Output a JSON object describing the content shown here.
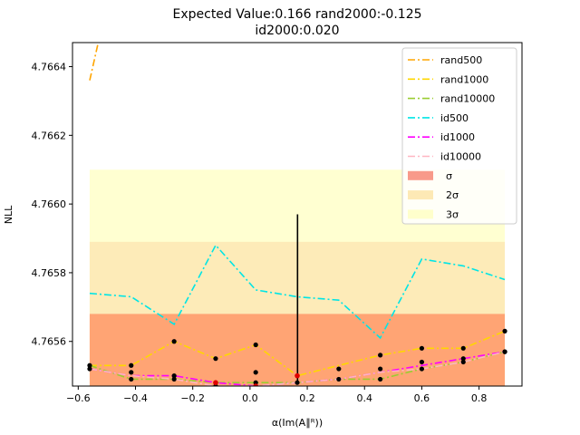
{
  "chart_data": {
    "type": "line",
    "title_line1": "Expected Value:0.166       rand2000:-0.125",
    "title_line2": "id2000:0.020",
    "xlabel": "α(Im(A∥ᴿ))",
    "ylabel": "NLL",
    "xlim": [
      -0.62,
      0.95
    ],
    "ylim": [
      4.76547,
      4.76647
    ],
    "xticks": [
      -0.6,
      -0.4,
      -0.2,
      0.0,
      0.2,
      0.4,
      0.6,
      0.8
    ],
    "xtick_labels": [
      "−0.6",
      "−0.4",
      "−0.2",
      "0.0",
      "0.2",
      "0.4",
      "0.6",
      "0.8"
    ],
    "yticks": [
      4.7656,
      4.7658,
      4.766,
      4.7662,
      4.7664
    ],
    "ytick_labels": [
      "4.7656",
      "4.7658",
      "4.7660",
      "4.7662",
      "4.7664"
    ],
    "x": [
      -0.56,
      -0.415,
      -0.265,
      -0.12,
      0.02,
      0.165,
      0.31,
      0.455,
      0.6,
      0.745,
      0.89
    ],
    "series": [
      {
        "name": "rand500",
        "color": "#ffa500",
        "x": [
          -0.56,
          -0.53
        ],
        "values": [
          4.76636,
          4.76647
        ]
      },
      {
        "name": "rand1000",
        "color": "#ffd700",
        "values": [
          4.76553,
          4.76553,
          4.7656,
          4.76555,
          4.76559,
          4.7655,
          4.76553,
          4.76556,
          4.76558,
          4.76558,
          4.76563
        ]
      },
      {
        "name": "rand10000",
        "color": "#9acd32",
        "values": [
          4.76553,
          4.76549,
          4.76549,
          4.76548,
          4.76548,
          4.76548,
          4.76549,
          4.76549,
          4.76552,
          4.76554,
          4.76557
        ]
      },
      {
        "name": "id500",
        "color": "#00e5e5",
        "values": [
          4.76574,
          4.76573,
          4.76565,
          4.76588,
          4.76575,
          4.76573,
          4.76572,
          4.76561,
          4.76584,
          4.76582,
          4.76578
        ]
      },
      {
        "name": "id1000",
        "color": "#ff00ff",
        "values": [
          4.76552,
          4.7655,
          4.7655,
          4.76548,
          4.76547,
          4.76548,
          4.76549,
          4.76551,
          4.76553,
          4.76555,
          4.76557
        ]
      },
      {
        "name": "id10000",
        "color": "#ffb6c1",
        "values": [
          4.76552,
          4.7655,
          4.76549,
          4.76547,
          4.76547,
          4.76548,
          4.76549,
          4.76551,
          4.76552,
          4.76554,
          4.76557
        ]
      }
    ],
    "black_points": [
      {
        "x": -0.56,
        "y": 4.76553
      },
      {
        "x": -0.56,
        "y": 4.76552
      },
      {
        "x": -0.415,
        "y": 4.76553
      },
      {
        "x": -0.415,
        "y": 4.76551
      },
      {
        "x": -0.415,
        "y": 4.76549
      },
      {
        "x": -0.265,
        "y": 4.7656
      },
      {
        "x": -0.265,
        "y": 4.7655
      },
      {
        "x": -0.265,
        "y": 4.76549
      },
      {
        "x": -0.12,
        "y": 4.76555
      },
      {
        "x": -0.12,
        "y": 4.76547
      },
      {
        "x": 0.02,
        "y": 4.76559
      },
      {
        "x": 0.02,
        "y": 4.76551
      },
      {
        "x": 0.02,
        "y": 4.76548
      },
      {
        "x": 0.165,
        "y": 4.76548
      },
      {
        "x": 0.31,
        "y": 4.76552
      },
      {
        "x": 0.31,
        "y": 4.76549
      },
      {
        "x": 0.455,
        "y": 4.76556
      },
      {
        "x": 0.455,
        "y": 4.76552
      },
      {
        "x": 0.455,
        "y": 4.76549
      },
      {
        "x": 0.6,
        "y": 4.76558
      },
      {
        "x": 0.6,
        "y": 4.76554
      },
      {
        "x": 0.6,
        "y": 4.76552
      },
      {
        "x": 0.745,
        "y": 4.76558
      },
      {
        "x": 0.745,
        "y": 4.76555
      },
      {
        "x": 0.745,
        "y": 4.76554
      },
      {
        "x": 0.89,
        "y": 4.76563
      },
      {
        "x": 0.89,
        "y": 4.76557
      },
      {
        "x": 0.89,
        "y": 4.76557
      }
    ],
    "red_points": [
      {
        "x": -0.12,
        "y": 4.76548
      },
      {
        "x": 0.02,
        "y": 4.76547
      },
      {
        "x": 0.165,
        "y": 4.7655
      }
    ],
    "expected_value_line": {
      "x": 0.166,
      "y_low": 4.76548,
      "y_high": 4.76597,
      "color": "#000000"
    },
    "bands": [
      {
        "name": "3σ",
        "label": "3σ",
        "color": "#ffffcc",
        "opacity": 0.9,
        "y_low": 4.76547,
        "y_high": 4.7661
      },
      {
        "name": "2σ",
        "label": "2σ",
        "color": "#fde9b5",
        "opacity": 0.9,
        "y_low": 4.76547,
        "y_high": 4.76589
      },
      {
        "name": "σ",
        "label": "σ",
        "color": "#ffa070",
        "opacity": 0.95,
        "y_low": 4.76547,
        "y_high": 4.76568
      }
    ],
    "band_x": [
      -0.56,
      0.89
    ],
    "legend": {
      "placement": "top-right",
      "entries": [
        {
          "label": "rand500",
          "kind": "line",
          "color": "#ffa500"
        },
        {
          "label": "rand1000",
          "kind": "line",
          "color": "#ffd700"
        },
        {
          "label": "rand10000",
          "kind": "line",
          "color": "#9acd32"
        },
        {
          "label": "id500",
          "kind": "line",
          "color": "#00e5e5"
        },
        {
          "label": "id1000",
          "kind": "line",
          "color": "#ff00ff"
        },
        {
          "label": "id10000",
          "kind": "line",
          "color": "#ffb6c1"
        },
        {
          "label": "σ",
          "kind": "patch",
          "color": "#f89a8a"
        },
        {
          "label": "2σ",
          "kind": "patch",
          "color": "#fde9b5"
        },
        {
          "label": "3σ",
          "kind": "patch",
          "color": "#ffffcc"
        }
      ]
    },
    "grid": false
  }
}
